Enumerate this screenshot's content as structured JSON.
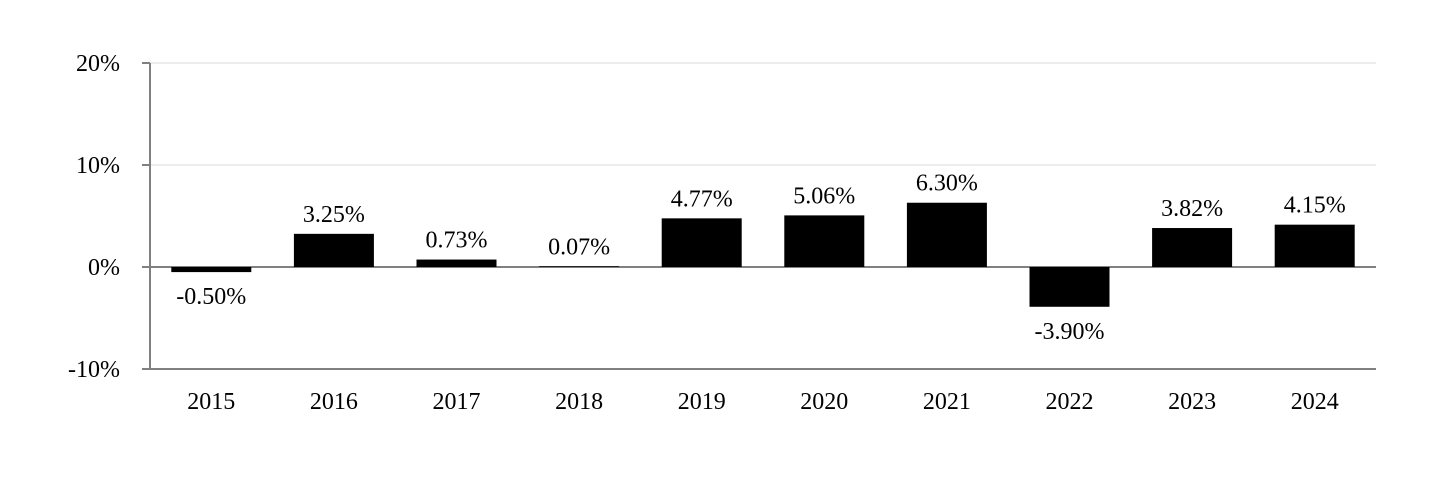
{
  "chart_data": {
    "type": "bar",
    "title": "",
    "xlabel": "",
    "ylabel": "",
    "categories": [
      "2015",
      "2016",
      "2017",
      "2018",
      "2019",
      "2020",
      "2021",
      "2022",
      "2023",
      "2024"
    ],
    "values": [
      -0.5,
      3.25,
      0.73,
      0.07,
      4.77,
      5.06,
      6.3,
      -3.9,
      3.82,
      4.15
    ],
    "value_labels": [
      "-0.50%",
      "3.25%",
      "0.73%",
      "0.07%",
      "4.77%",
      "5.06%",
      "6.30%",
      "-3.90%",
      "3.82%",
      "4.15%"
    ],
    "ylim": [
      -10,
      20
    ],
    "yticks": [
      -10,
      0,
      10,
      20
    ],
    "ytick_labels": [
      "-10%",
      "0%",
      "10%",
      "20%"
    ],
    "grid": true,
    "legend": "none",
    "colors": {
      "bar": "#000000",
      "axis": "#808080",
      "grid": "#e6e6e6",
      "text": "#000000"
    }
  }
}
